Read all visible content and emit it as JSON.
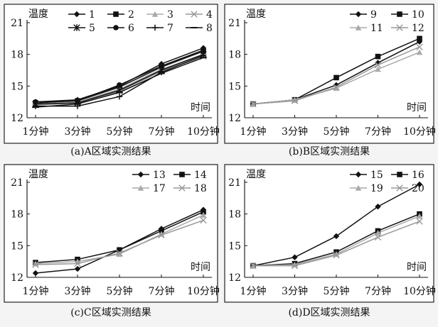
{
  "chart_data": [
    {
      "type": "line",
      "caption": "(a)A区域实测结果",
      "ylabel": "温度",
      "xlabel": "时间",
      "categories": [
        "1分钟",
        "3分钟",
        "5分钟",
        "7分钟",
        "10分钟"
      ],
      "ylim": [
        12,
        21
      ],
      "yticks": [
        12,
        15,
        18,
        21
      ],
      "legend_columns": 4,
      "series": [
        {
          "name": "1",
          "marker": "diamond",
          "color": "#111111",
          "values": [
            13.5,
            13.7,
            15.0,
            17.1,
            18.6
          ]
        },
        {
          "name": "2",
          "marker": "square",
          "color": "#111111",
          "values": [
            13.4,
            13.6,
            14.9,
            16.8,
            18.3
          ]
        },
        {
          "name": "3",
          "marker": "triangle",
          "color": "#aaaaaa",
          "values": [
            13.3,
            13.5,
            14.7,
            16.6,
            18.0
          ]
        },
        {
          "name": "4",
          "marker": "x",
          "color": "#999999",
          "values": [
            13.2,
            13.4,
            14.5,
            16.4,
            17.8
          ]
        },
        {
          "name": "5",
          "marker": "asterisk",
          "color": "#111111",
          "values": [
            13.3,
            13.4,
            14.6,
            16.5,
            18.0
          ]
        },
        {
          "name": "6",
          "marker": "circle",
          "color": "#111111",
          "values": [
            13.5,
            13.6,
            15.1,
            16.9,
            18.4
          ]
        },
        {
          "name": "7",
          "marker": "plus",
          "color": "#111111",
          "values": [
            13.1,
            13.1,
            14.0,
            16.3,
            17.9
          ]
        },
        {
          "name": "8",
          "marker": "dash",
          "color": "#111111",
          "values": [
            13.0,
            13.3,
            14.4,
            16.2,
            17.7
          ]
        }
      ]
    },
    {
      "type": "line",
      "caption": "(b)B区域实测结果",
      "ylabel": "温度",
      "xlabel": "时间",
      "categories": [
        "1分钟",
        "3分钟",
        "5分钟",
        "7分钟",
        "10分钟"
      ],
      "ylim": [
        12,
        21
      ],
      "yticks": [
        12,
        15,
        18,
        21
      ],
      "legend_columns": 2,
      "series": [
        {
          "name": "9",
          "marker": "diamond",
          "color": "#111111",
          "values": [
            13.3,
            13.7,
            15.1,
            17.2,
            19.2
          ]
        },
        {
          "name": "10",
          "marker": "square",
          "color": "#111111",
          "values": [
            13.3,
            13.7,
            15.8,
            17.8,
            19.5
          ]
        },
        {
          "name": "11",
          "marker": "triangle",
          "color": "#aaaaaa",
          "values": [
            13.3,
            13.7,
            14.8,
            16.6,
            18.2
          ]
        },
        {
          "name": "12",
          "marker": "x",
          "color": "#999999",
          "values": [
            13.3,
            13.6,
            14.9,
            17.0,
            18.7
          ]
        }
      ]
    },
    {
      "type": "line",
      "caption": "(c)C区域实测结果",
      "ylabel": "温度",
      "xlabel": "时间",
      "categories": [
        "1分钟",
        "3分钟",
        "5分钟",
        "7分钟",
        "10分钟"
      ],
      "ylim": [
        12,
        21
      ],
      "yticks": [
        12,
        15,
        18,
        21
      ],
      "legend_columns": 2,
      "series": [
        {
          "name": "13",
          "marker": "diamond",
          "color": "#111111",
          "values": [
            12.4,
            12.8,
            14.6,
            16.6,
            18.4
          ]
        },
        {
          "name": "14",
          "marker": "square",
          "color": "#111111",
          "values": [
            13.4,
            13.7,
            14.6,
            16.4,
            18.2
          ]
        },
        {
          "name": "17",
          "marker": "triangle",
          "color": "#aaaaaa",
          "values": [
            13.3,
            13.5,
            14.2,
            16.1,
            17.9
          ]
        },
        {
          "name": "18",
          "marker": "x",
          "color": "#999999",
          "values": [
            13.2,
            13.3,
            14.3,
            16.0,
            17.4
          ]
        }
      ]
    },
    {
      "type": "line",
      "caption": "(d)D区域实测结果",
      "ylabel": "温度",
      "xlabel": "时间",
      "categories": [
        "1分钟",
        "3分钟",
        "5分钟",
        "7分钟",
        "10分钟"
      ],
      "ylim": [
        12,
        21
      ],
      "yticks": [
        12,
        15,
        18,
        21
      ],
      "legend_columns": 2,
      "series": [
        {
          "name": "15",
          "marker": "diamond",
          "color": "#111111",
          "values": [
            13.1,
            13.9,
            15.9,
            18.7,
            20.8
          ]
        },
        {
          "name": "16",
          "marker": "square",
          "color": "#111111",
          "values": [
            13.1,
            13.3,
            14.4,
            16.4,
            18.0
          ]
        },
        {
          "name": "19",
          "marker": "triangle",
          "color": "#aaaaaa",
          "values": [
            13.1,
            13.2,
            14.2,
            16.2,
            17.8
          ]
        },
        {
          "name": "20",
          "marker": "x",
          "color": "#999999",
          "values": [
            13.1,
            13.1,
            14.1,
            15.8,
            17.3
          ]
        }
      ]
    }
  ]
}
